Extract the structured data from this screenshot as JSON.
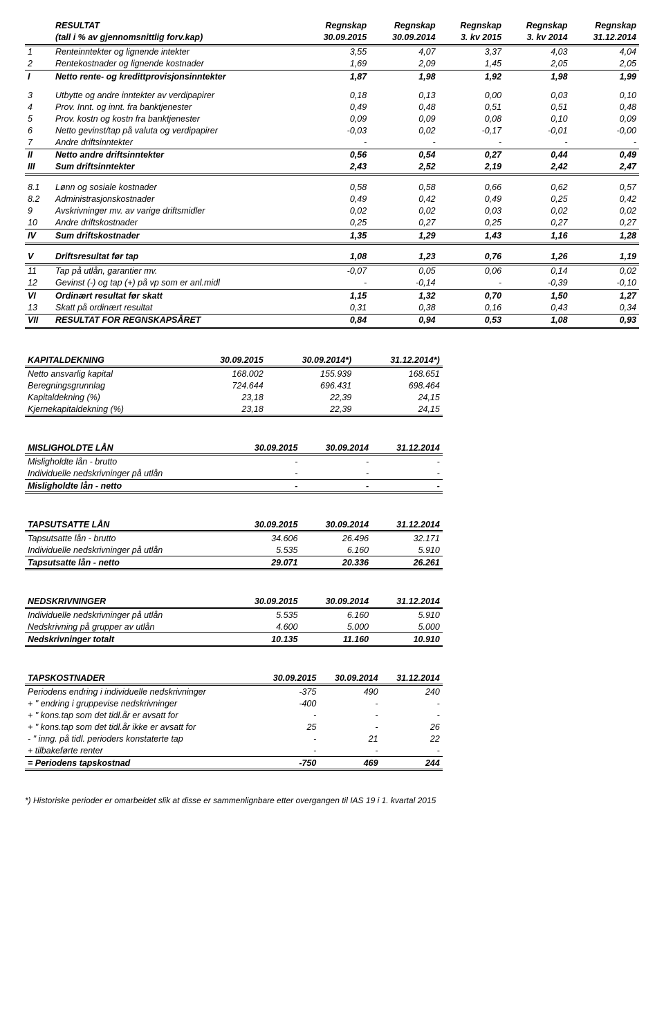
{
  "resultat": {
    "header1": [
      "RESULTAT",
      "Regnskap",
      "Regnskap",
      "Regnskap",
      "Regnskap",
      "Regnskap"
    ],
    "header2": [
      "(tall i % av gjennomsnittlig forv.kap)",
      "30.09.2015",
      "30.09.2014",
      "3. kv 2015",
      "3. kv 2014",
      "31.12.2014"
    ],
    "rows": [
      {
        "idx": "1",
        "label": "Renteinntekter og lignende intekter",
        "v": [
          "3,55",
          "4,07",
          "3,37",
          "4,03",
          "4,04"
        ],
        "style": "italic"
      },
      {
        "idx": "2",
        "label": "Rentekostnader og lignende kostnader",
        "v": [
          "1,69",
          "2,09",
          "1,45",
          "2,05",
          "2,05"
        ],
        "style": "italic thin"
      },
      {
        "idx": "I",
        "label": "Netto rente- og kredittprovisjonsinntekter",
        "v": [
          "1,87",
          "1,98",
          "1,92",
          "1,98",
          "1,99"
        ],
        "style": "bold italic"
      },
      {
        "gap": true
      },
      {
        "idx": "3",
        "label": "Utbytte og andre inntekter av verdipapirer",
        "v": [
          "0,18",
          "0,13",
          "0,00",
          "0,03",
          "0,10"
        ],
        "style": "italic"
      },
      {
        "idx": "4",
        "label": "Prov. Innt. og innt. fra banktjenester",
        "v": [
          "0,49",
          "0,48",
          "0,51",
          "0,51",
          "0,48"
        ],
        "style": "italic"
      },
      {
        "idx": "5",
        "label": "Prov. kostn og kostn fra banktjenester",
        "v": [
          "0,09",
          "0,09",
          "0,08",
          "0,10",
          "0,09"
        ],
        "style": "italic"
      },
      {
        "idx": "6",
        "label": "Netto gevinst/tap på valuta og verdipapirer",
        "v": [
          "-0,03",
          "0,02",
          "-0,17",
          "-0,01",
          "-0,00"
        ],
        "style": "italic"
      },
      {
        "idx": "7",
        "label": "Andre driftsinntekter",
        "v": [
          "-",
          "-",
          "-",
          "-",
          "-"
        ],
        "style": "italic thin"
      },
      {
        "idx": "II",
        "label": "Netto andre driftsinntekter",
        "v": [
          "0,56",
          "0,54",
          "0,27",
          "0,44",
          "0,49"
        ],
        "style": "bold italic"
      },
      {
        "idx": "III",
        "label": "Sum driftsinntekter",
        "v": [
          "2,43",
          "2,52",
          "2,19",
          "2,42",
          "2,47"
        ],
        "style": "bold italic dbl"
      },
      {
        "gap": true
      },
      {
        "idx": "8.1",
        "label": "Lønn og sosiale kostnader",
        "v": [
          "0,58",
          "0,58",
          "0,66",
          "0,62",
          "0,57"
        ],
        "style": "italic"
      },
      {
        "idx": "8.2",
        "label": "Administrasjonskostnader",
        "v": [
          "0,49",
          "0,42",
          "0,49",
          "0,25",
          "0,42"
        ],
        "style": "italic"
      },
      {
        "idx": "9",
        "label": "Avskrivninger mv. av varige driftsmidler",
        "v": [
          "0,02",
          "0,02",
          "0,03",
          "0,02",
          "0,02"
        ],
        "style": "italic"
      },
      {
        "idx": "10",
        "label": "Andre driftskostnader",
        "v": [
          "0,25",
          "0,27",
          "0,25",
          "0,27",
          "0,27"
        ],
        "style": "italic thin"
      },
      {
        "idx": "IV",
        "label": "Sum driftskostnader",
        "v": [
          "1,35",
          "1,29",
          "1,43",
          "1,16",
          "1,28"
        ],
        "style": "bold italic dbl"
      },
      {
        "gap": true
      },
      {
        "idx": "V",
        "label": "Driftsresultat før tap",
        "v": [
          "1,08",
          "1,23",
          "0,76",
          "1,26",
          "1,19"
        ],
        "style": "bold italic dbl"
      },
      {
        "idx": "11",
        "label": "Tap på utlån, garantier mv.",
        "v": [
          "-0,07",
          "0,05",
          "0,06",
          "0,14",
          "0,02"
        ],
        "style": "italic"
      },
      {
        "idx": "12",
        "label": "Gevinst (-) og tap (+) på vp som er anl.midl",
        "v": [
          "-",
          "-0,14",
          "-",
          "-0,39",
          "-0,10"
        ],
        "style": "italic thin"
      },
      {
        "idx": "VI",
        "label": "Ordinært resultat før skatt",
        "v": [
          "1,15",
          "1,32",
          "0,70",
          "1,50",
          "1,27"
        ],
        "style": "bold italic"
      },
      {
        "idx": "13",
        "label": "Skatt på ordinært resultat",
        "v": [
          "0,31",
          "0,38",
          "0,16",
          "0,43",
          "0,34"
        ],
        "style": "italic thin"
      },
      {
        "idx": "VII",
        "label": "RESULTAT FOR REGNSKAPSÅRET",
        "v": [
          "0,84",
          "0,94",
          "0,53",
          "1,08",
          "0,93"
        ],
        "style": "bold italic dbl"
      }
    ]
  },
  "mini_tables": [
    {
      "title": "KAPITALDEKNING",
      "cols": [
        "30.09.2015",
        "30.09.2014*)",
        "31.12.2014*)"
      ],
      "rows": [
        {
          "label": "Netto ansvarlig kapital",
          "v": [
            "168.002",
            "155.939",
            "168.651"
          ]
        },
        {
          "label": "Beregningsgrunnlag",
          "v": [
            "724.644",
            "696.431",
            "698.464"
          ]
        },
        {
          "label": "Kapitaldekning (%)",
          "v": [
            "23,18",
            "22,39",
            "24,15"
          ]
        },
        {
          "label": "Kjernekapitaldekning (%)",
          "v": [
            "23,18",
            "22,39",
            "24,15"
          ],
          "bottom": "dbl"
        }
      ]
    },
    {
      "title": "MISLIGHOLDTE LÅN",
      "cols": [
        "30.09.2015",
        "30.09.2014",
        "31.12.2014"
      ],
      "rows": [
        {
          "label": "Misligholdte lån - brutto",
          "v": [
            "-",
            "-",
            "-"
          ]
        },
        {
          "label": "Individuelle nedskrivninger på utlån",
          "v": [
            "-",
            "-",
            "-"
          ],
          "bottom": "thin"
        },
        {
          "label": "Misligholdte lån - netto",
          "v": [
            "-",
            "-",
            "-"
          ],
          "bottom": "dbl",
          "style": "bold"
        }
      ]
    },
    {
      "title": "TAPSUTSATTE LÅN",
      "cols": [
        "30.09.2015",
        "30.09.2014",
        "31.12.2014"
      ],
      "rows": [
        {
          "label": "Tapsutsatte lån - brutto",
          "v": [
            "34.606",
            "26.496",
            "32.171"
          ]
        },
        {
          "label": "Individuelle nedskrivninger på utlån",
          "v": [
            "5.535",
            "6.160",
            "5.910"
          ],
          "bottom": "thin"
        },
        {
          "label": "Tapsutsatte lån - netto",
          "v": [
            "29.071",
            "20.336",
            "26.261"
          ],
          "bottom": "dbl",
          "style": "bold"
        }
      ]
    },
    {
      "title": "NEDSKRIVNINGER",
      "cols": [
        "30.09.2015",
        "30.09.2014",
        "31.12.2014"
      ],
      "rows": [
        {
          "label": "Individuelle nedskrivninger på utlån",
          "v": [
            "5.535",
            "6.160",
            "5.910"
          ]
        },
        {
          "label": "Nedskrivning på grupper av utlån",
          "v": [
            "4.600",
            "5.000",
            "5.000"
          ],
          "bottom": "thin"
        },
        {
          "label": "Nedskrivninger totalt",
          "v": [
            "10.135",
            "11.160",
            "10.910"
          ],
          "bottom": "dbl",
          "style": "bold"
        }
      ]
    },
    {
      "title": "TAPSKOSTNADER",
      "cols": [
        "30.09.2015",
        "30.09.2014",
        "31.12.2014"
      ],
      "rows": [
        {
          "label": "Periodens endring i individuelle nedskrivninger",
          "v": [
            "-375",
            "490",
            "240"
          ]
        },
        {
          "label": "+   \"   endring i gruppevise nedskrivninger",
          "v": [
            "-400",
            "-",
            "-"
          ]
        },
        {
          "label": "+   \"   kons.tap som det tidl.år er avsatt for",
          "v": [
            "-",
            "-",
            "-"
          ]
        },
        {
          "label": "+   \"   kons.tap som det tidl.år ikke er avsatt for",
          "v": [
            "25",
            "-",
            "26"
          ]
        },
        {
          "label": "-   \"   inng. på tidl. perioders konstaterte tap",
          "v": [
            "-",
            "21",
            "22"
          ]
        },
        {
          "label": "+ tilbakeførte renter",
          "v": [
            "-",
            "-",
            "-"
          ],
          "bottom": "thin"
        },
        {
          "label": "= Periodens tapskostnad",
          "v": [
            "-750",
            "469",
            "244"
          ],
          "bottom": "dbl",
          "style": "bold"
        }
      ]
    }
  ],
  "footnote": "*) Historiske perioder er omarbeidet slik at disse er sammenlignbare etter overgangen til IAS 19 i 1. kvartal 2015"
}
